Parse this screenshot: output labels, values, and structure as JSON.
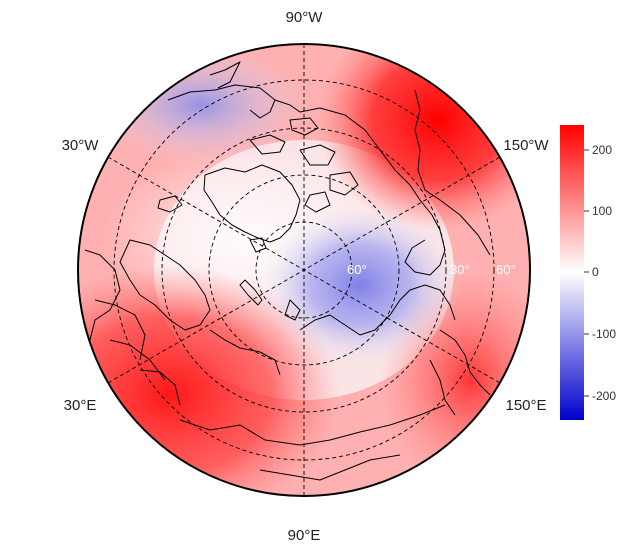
{
  "map": {
    "projection": "north-polar-stereographic",
    "longitude_labels": {
      "top": "90°W",
      "bottom": "90°E",
      "upper_left": "30°W",
      "lower_left": "30°E",
      "upper_right": "150°W",
      "lower_right": "150°E"
    },
    "latitude_labels": [
      "60°",
      "30°",
      "60°"
    ],
    "colors": {
      "max": "#ff0000",
      "mid": "#ffffff",
      "min": "#0000cc",
      "coastline": "#000000",
      "graticule": "#000000"
    }
  },
  "colorbar": {
    "ticks": [
      "200",
      "100",
      "0",
      "-100",
      "-200"
    ],
    "min": -240,
    "max": 240
  }
}
